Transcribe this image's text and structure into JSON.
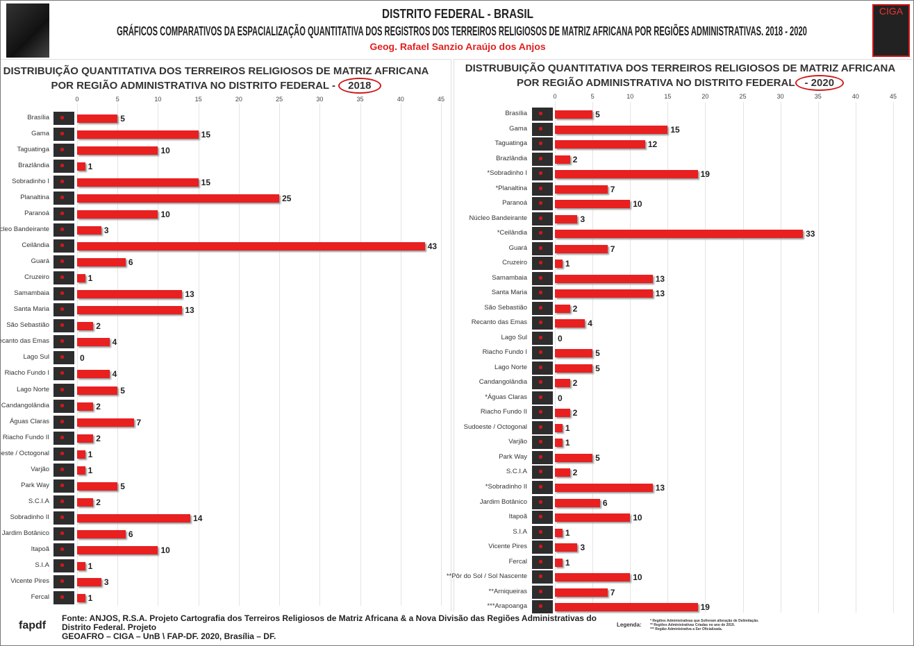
{
  "header": {
    "line1": "DISTRITO FEDERAL - BRASIL",
    "line2": "GRÁFICOS COMPARATIVOS DA ESPACIALIZAÇÃO QUANTITATIVA DOS REGISTROS DOS TERREIROS RELIGIOSOS DE MATRIZ AFRICANA POR REGIÕES ADMINISTRATIVAS. 2018 - 2020",
    "author": "Geog. Rafael Sanzio Araújo dos Anjos",
    "logo_right": "CIGA",
    "logo_left": "fapdf"
  },
  "chart_data": [
    {
      "type": "bar",
      "orientation": "horizontal",
      "title": "DISTRIBUIÇÃO QUANTITATIVA DOS TERREIROS RELIGIOSOS DE MATRIZ AFRICANA POR REGIÃO ADMINISTRATIVA NO DISTRITO FEDERAL -",
      "year": "2018",
      "xlim": [
        0,
        45
      ],
      "ticks": [
        "0",
        "5",
        "10",
        "15",
        "20",
        "25",
        "30",
        "35",
        "40",
        "45"
      ],
      "grid": true,
      "categories": [
        "Brasília",
        "Gama",
        "Taguatinga",
        "Brazlândia",
        "Sobradinho I",
        "Planaltina",
        "Paranoá",
        "Núcleo Bandeirante",
        "Ceilândia",
        "Guará",
        "Cruzeiro",
        "Samambaia",
        "Santa Maria",
        "São Sebastião",
        "Recanto das Emas",
        "Lago Sul",
        "Riacho Fundo I",
        "Lago Norte",
        "Candangolândia",
        "Águas Claras",
        "Riacho Fundo II",
        "Sudoeste / Octogonal",
        "Varjão",
        "Park Way",
        "S.C.I.A",
        "Sobradinho II",
        "Jardim Botânico",
        "Itapoã",
        "S.I.A",
        "Vicente Pires",
        "Fercal"
      ],
      "values": [
        5,
        15,
        10,
        1,
        15,
        25,
        10,
        3,
        43,
        6,
        1,
        13,
        13,
        2,
        4,
        0,
        4,
        5,
        2,
        7,
        2,
        1,
        1,
        5,
        2,
        14,
        6,
        10,
        1,
        3,
        1
      ],
      "color": "#e82020"
    },
    {
      "type": "bar",
      "orientation": "horizontal",
      "title": "DISTRUBUIÇÃO QUANTITATIVA DOS TERREIROS RELIGIOSOS DE MATRIZ AFRICANA POR REGIÃO ADMINISTRATIVA NO DISTRITO FEDERAL",
      "year": "- 2020",
      "xlim": [
        0,
        45
      ],
      "ticks": [
        "0",
        "5",
        "10",
        "15",
        "20",
        "25",
        "30",
        "35",
        "40",
        "45"
      ],
      "grid": true,
      "categories": [
        "Brasília",
        "Gama",
        "Taguatinga",
        "Brazlândia",
        "*Sobradinho I",
        "*Planaltina",
        "Paranoá",
        "Núcleo Bandeirante",
        "*Ceilândia",
        "Guará",
        "Cruzeiro",
        "Samambaia",
        "Santa Maria",
        "São Sebastião",
        "Recanto das Emas",
        "Lago Sul",
        "Riacho Fundo I",
        "Lago Norte",
        "Candangolândia",
        "*Águas Claras",
        "Riacho Fundo II",
        "Sudoeste / Octogonal",
        "Varjão",
        "Park Way",
        "S.C.I.A",
        "*Sobradinho II",
        "Jardim Botânico",
        "Itapoã",
        "S.I.A",
        "Vicente Pires",
        "Fercal",
        "**Pôr do Sol / Sol Nascente",
        "**Arniqueiras",
        "***Arapoanga"
      ],
      "values": [
        5,
        15,
        12,
        2,
        19,
        7,
        10,
        3,
        33,
        7,
        1,
        13,
        13,
        2,
        4,
        0,
        5,
        5,
        2,
        0,
        2,
        1,
        1,
        5,
        2,
        13,
        6,
        10,
        1,
        3,
        1,
        10,
        7,
        19
      ],
      "color": "#e82020"
    }
  ],
  "footer": {
    "source1": "Fonte: ANJOS, R.S.A. Projeto Cartografia dos Terreiros Religiosos de Matriz Africana & a Nova Divisão das Regiões Administrativas do Distrito Federal. Projeto",
    "source2": "GEOAFRO – CIGA – UnB \\ FAP-DF. 2020, Brasília – DF.",
    "legend_label": "Legenda:",
    "legend_notes": [
      "* Regiões Administrativas que Sofreram alteração de Delimitação.",
      "** Regiões Administrativas Criadas no ano de 2019.",
      "*** Região Administrativa a Ser Oficializada."
    ]
  }
}
